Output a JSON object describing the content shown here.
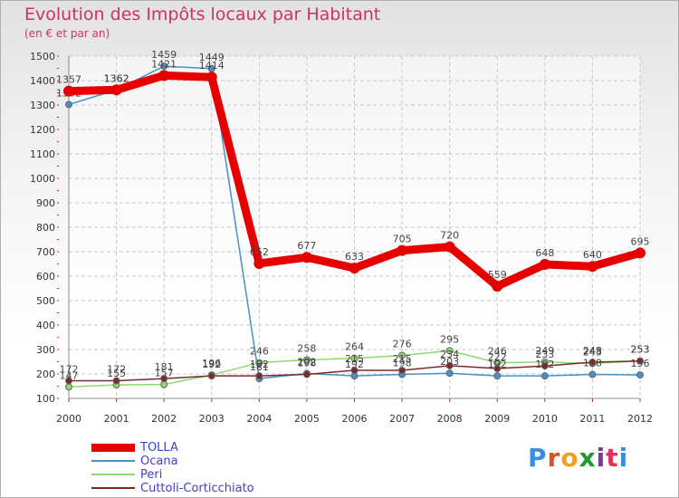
{
  "title": "Evolution des Impôts locaux par Habitant",
  "subtitle": "(en € et par an)",
  "logo": {
    "text": "Proxiti",
    "colors": [
      "#3a8ee0",
      "#e05020",
      "#f0a020",
      "#1e9a30",
      "#7a3a9a",
      "#e03060",
      "#3a8ee0"
    ]
  },
  "chart_data": {
    "type": "line",
    "title": "Evolution des Impôts locaux par Habitant",
    "subtitle": "(en € et par an)",
    "xlabel": "",
    "ylabel": "",
    "x": [
      "2000",
      "2001",
      "2002",
      "2003",
      "2004",
      "2005",
      "2006",
      "2007",
      "2008",
      "2009",
      "2010",
      "2011",
      "2012"
    ],
    "ylim": [
      100,
      1500
    ],
    "yticks": [
      100,
      200,
      300,
      400,
      500,
      600,
      700,
      800,
      900,
      1000,
      1100,
      1200,
      1300,
      1400,
      1500
    ],
    "grid": true,
    "legend_position": "bottom-left",
    "series": [
      {
        "name": "Peri",
        "color": "#90d870",
        "values": [
          147,
          155,
          157,
          196,
          246,
          258,
          264,
          276,
          295,
          246,
          249,
          243,
          253
        ]
      },
      {
        "name": "Ocana",
        "color": "#4a90c8",
        "values": [
          1302,
          1362,
          1459,
          1449,
          181,
          202,
          192,
          198,
          203,
          192,
          192,
          198,
          196
        ]
      },
      {
        "name": "Cuttoli-Corticchiato",
        "color": "#7a2a2a",
        "values": [
          172,
          172,
          181,
          192,
          192,
          198,
          215,
          215,
          234,
          222,
          233,
          248,
          253
        ]
      },
      {
        "name": "TOLLA",
        "color": "#e60000",
        "values": [
          1357,
          1362,
          1421,
          1414,
          652,
          677,
          633,
          705,
          720,
          559,
          648,
          640,
          695
        ]
      }
    ],
    "legend_order": [
      "TOLLA",
      "Ocana",
      "Peri",
      "Cuttoli-Corticchiato"
    ]
  }
}
